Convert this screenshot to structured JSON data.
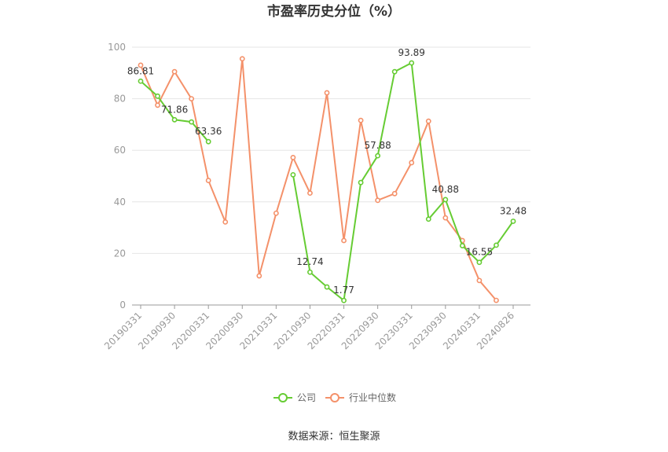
{
  "chart_data": {
    "type": "line",
    "title": "市盈率历史分位（%）",
    "source": "数据来源：恒生聚源",
    "ylim": [
      0,
      100
    ],
    "yticks": [
      "0",
      "20",
      "40",
      "60",
      "80",
      "100"
    ],
    "grid": true,
    "legend_position": "bottom",
    "x_count": 23,
    "x_tick_labels": [
      {
        "index": 0,
        "label": "20190331"
      },
      {
        "index": 2,
        "label": "20190930"
      },
      {
        "index": 4,
        "label": "20200331"
      },
      {
        "index": 6,
        "label": "20200930"
      },
      {
        "index": 8,
        "label": "20210331"
      },
      {
        "index": 10,
        "label": "20210930"
      },
      {
        "index": 12,
        "label": "20220331"
      },
      {
        "index": 14,
        "label": "20220930"
      },
      {
        "index": 16,
        "label": "20230331"
      },
      {
        "index": 18,
        "label": "20230930"
      },
      {
        "index": 20,
        "label": "20240331"
      },
      {
        "index": 22,
        "label": "20240826"
      }
    ],
    "series": [
      {
        "name": "公司",
        "color": "#66cc33",
        "points": [
          [
            0,
            86.81
          ],
          [
            1,
            81.0
          ],
          [
            2,
            71.86
          ],
          [
            3,
            71.0
          ],
          [
            4,
            63.36
          ],
          [
            9,
            50.5
          ],
          [
            10,
            12.74
          ],
          [
            11,
            7.0
          ],
          [
            12,
            1.77
          ],
          [
            13,
            47.5
          ],
          [
            14,
            57.88
          ],
          [
            15,
            90.5
          ],
          [
            16,
            93.89
          ],
          [
            17,
            33.3
          ],
          [
            18,
            40.88
          ],
          [
            19,
            23.0
          ],
          [
            20,
            16.55
          ],
          [
            21,
            23.2
          ],
          [
            22,
            32.48
          ]
        ],
        "labels": [
          {
            "index": 0,
            "text": "86.81"
          },
          {
            "index": 2,
            "text": "71.86"
          },
          {
            "index": 4,
            "text": "63.36"
          },
          {
            "index": 10,
            "text": "12.74"
          },
          {
            "index": 12,
            "text": "1.77"
          },
          {
            "index": 14,
            "text": "57.88"
          },
          {
            "index": 16,
            "text": "93.89"
          },
          {
            "index": 18,
            "text": "40.88"
          },
          {
            "index": 20,
            "text": "16.55"
          },
          {
            "index": 22,
            "text": "32.48"
          }
        ]
      },
      {
        "name": "行业中位数",
        "color": "#f4916a",
        "points": [
          [
            0,
            93.0
          ],
          [
            1,
            77.5
          ],
          [
            2,
            90.5
          ],
          [
            3,
            80.0
          ],
          [
            4,
            48.3
          ],
          [
            5,
            32.2
          ],
          [
            6,
            95.5
          ],
          [
            7,
            11.3
          ],
          [
            8,
            35.6
          ],
          [
            9,
            57.2
          ],
          [
            10,
            43.4
          ],
          [
            11,
            82.3
          ],
          [
            12,
            25.0
          ],
          [
            13,
            71.6
          ],
          [
            14,
            40.6
          ],
          [
            15,
            43.2
          ],
          [
            16,
            55.2
          ],
          [
            17,
            71.3
          ],
          [
            18,
            33.8
          ],
          [
            19,
            25.0
          ],
          [
            20,
            9.5
          ],
          [
            21,
            1.8
          ]
        ]
      }
    ]
  }
}
